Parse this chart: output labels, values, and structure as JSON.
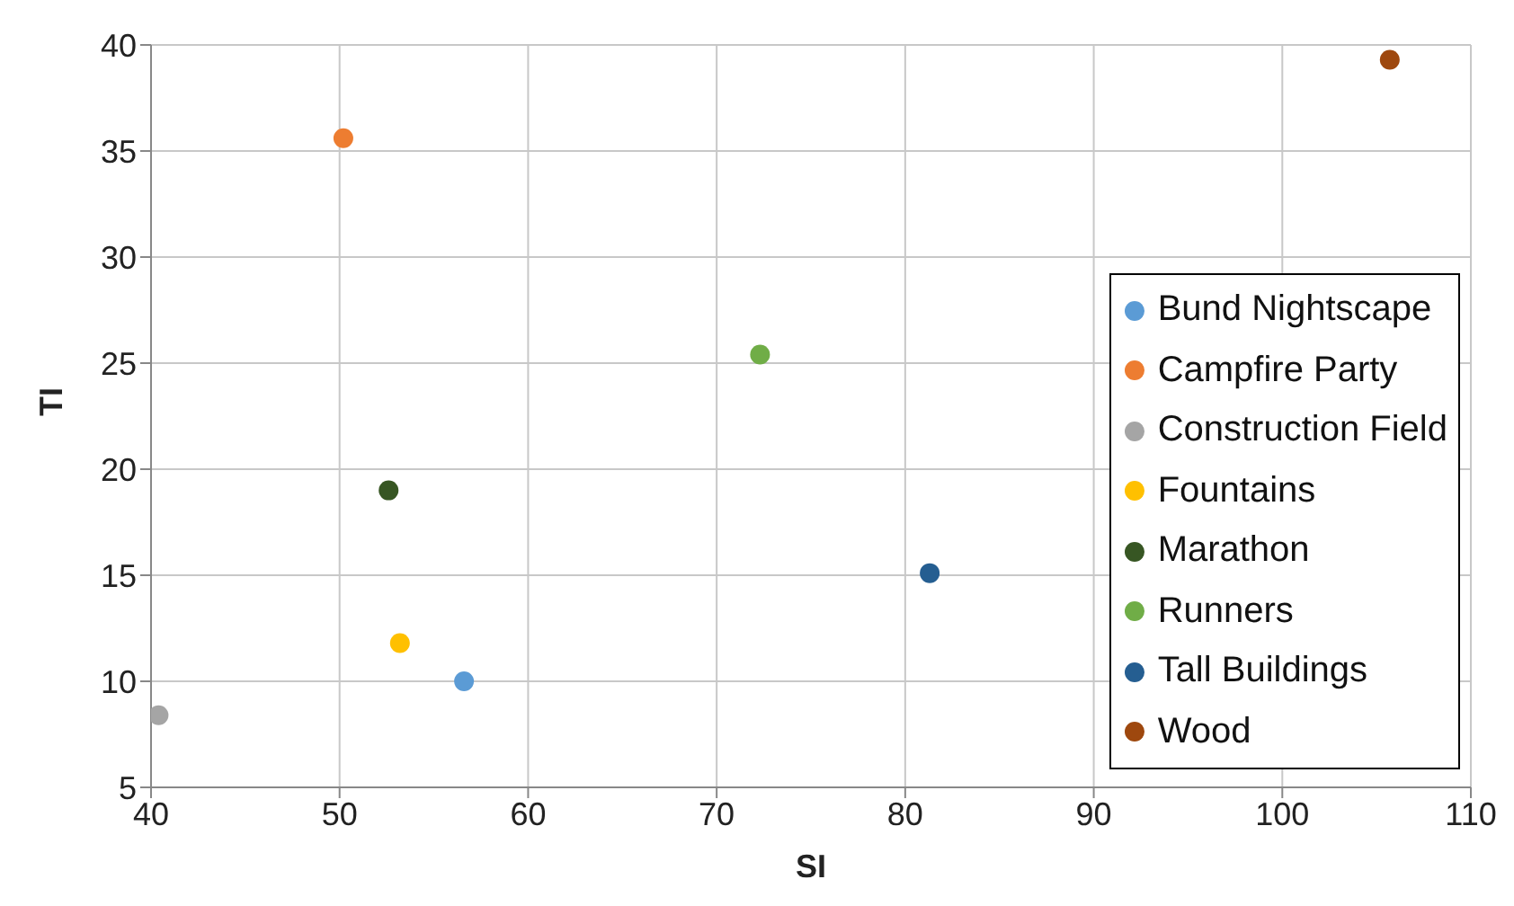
{
  "chart_data": {
    "type": "scatter",
    "xlabel": "SI",
    "ylabel": "TI",
    "xlim": [
      40,
      110
    ],
    "xticks": [
      40,
      50,
      60,
      70,
      80,
      90,
      100,
      110
    ],
    "ylim": [
      5,
      40
    ],
    "yticks": [
      5,
      10,
      15,
      20,
      25,
      30,
      35,
      40
    ],
    "grid": true,
    "legend": "right",
    "marker": "circle",
    "series": [
      {
        "name": "Bund Nightscape",
        "color": "#5b9bd5",
        "x": [
          56.6
        ],
        "values": [
          10.0
        ]
      },
      {
        "name": "Campfire Party",
        "color": "#ed7d31",
        "x": [
          50.2
        ],
        "values": [
          35.6
        ]
      },
      {
        "name": "Construction Field",
        "color": "#a5a5a5",
        "x": [
          40.4
        ],
        "values": [
          8.4
        ]
      },
      {
        "name": "Fountains",
        "color": "#ffc000",
        "x": [
          53.2
        ],
        "values": [
          11.8
        ]
      },
      {
        "name": "Marathon",
        "color": "#375623",
        "x": [
          52.6
        ],
        "values": [
          19.0
        ]
      },
      {
        "name": "Runners",
        "color": "#70ad47",
        "x": [
          72.3
        ],
        "values": [
          25.4
        ]
      },
      {
        "name": "Tall Buildings",
        "color": "#255e91",
        "x": [
          81.3
        ],
        "values": [
          15.1
        ]
      },
      {
        "name": "Wood",
        "color": "#9e480e",
        "x": [
          105.7
        ],
        "values": [
          39.3
        ]
      }
    ]
  }
}
